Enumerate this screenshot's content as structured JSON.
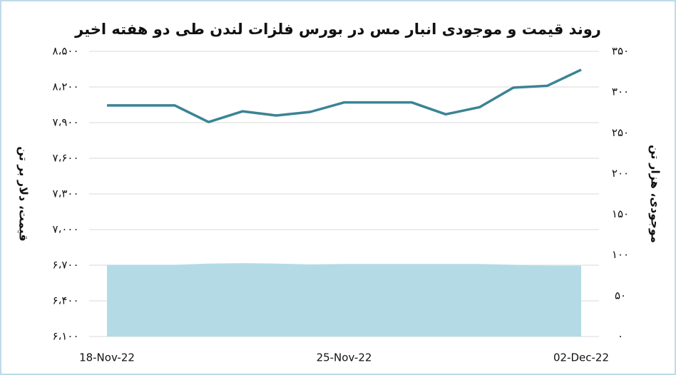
{
  "chart_data": {
    "type": "line",
    "title": "روند قیمت و موجودی انبار مس در بورس فلزات لندن طی دو هفته اخیر",
    "y_label": "قیمت، دلار بر تن",
    "y2_label": "موجودی، هزار تن",
    "categories": [
      "18-Nov-22",
      null,
      null,
      null,
      null,
      null,
      null,
      "25-Nov-22",
      null,
      null,
      null,
      null,
      null,
      null,
      "02-Dec-22"
    ],
    "series": [
      {
        "name": "موجودی",
        "kind": "area",
        "axis": "y2",
        "color": "#b4dbe5",
        "values": [
          88,
          88,
          88,
          89.5,
          90,
          89.5,
          88.5,
          89,
          89,
          89,
          89,
          89,
          88,
          87,
          87
        ]
      },
      {
        "name": "قیمت",
        "kind": "line",
        "axis": "y",
        "color": "#3a8494",
        "values": [
          8045,
          8045,
          8045,
          7905,
          7995,
          7960,
          7990,
          8070,
          8070,
          8070,
          7970,
          8030,
          8195,
          8210,
          8345
        ]
      }
    ],
    "ylim": [
      6100,
      8500
    ],
    "yticks": [
      {
        "value": 6100,
        "label": "۶،۱۰۰"
      },
      {
        "value": 6400,
        "label": "۶،۴۰۰"
      },
      {
        "value": 6700,
        "label": "۶،۷۰۰"
      },
      {
        "value": 7000,
        "label": "۷،۰۰۰"
      },
      {
        "value": 7300,
        "label": "۷،۳۰۰"
      },
      {
        "value": 7600,
        "label": "۷،۶۰۰"
      },
      {
        "value": 7900,
        "label": "۷،۹۰۰"
      },
      {
        "value": 8200,
        "label": "۸،۲۰۰"
      },
      {
        "value": 8500,
        "label": "۸،۵۰۰"
      }
    ],
    "y2lim": [
      0,
      350
    ],
    "y2ticks": [
      {
        "value": 0,
        "label": "۰"
      },
      {
        "value": 50,
        "label": "۵۰"
      },
      {
        "value": 100,
        "label": "۱۰۰"
      },
      {
        "value": 150,
        "label": "۱۵۰"
      },
      {
        "value": 200,
        "label": "۲۰۰"
      },
      {
        "value": 250,
        "label": "۲۵۰"
      },
      {
        "value": 300,
        "label": "۳۰۰"
      },
      {
        "value": 350,
        "label": "۳۵۰"
      }
    ],
    "grid": true
  }
}
